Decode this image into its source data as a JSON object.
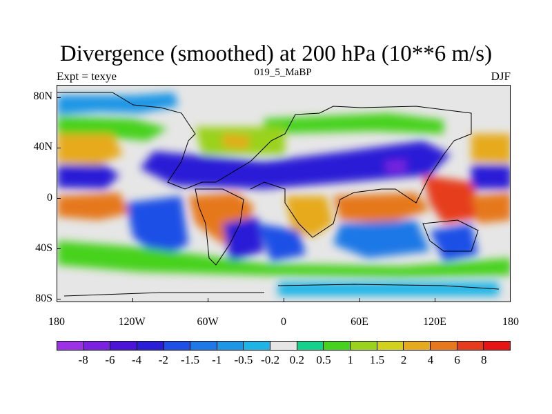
{
  "title": "Divergence (smoothed) at 200 hPa (10**6 m/s)",
  "left_string": "Expt = texye",
  "center_string": "019_5_MaBP",
  "right_string": "DJF",
  "map": {
    "projection": "cylindrical equidistant",
    "lon_range": [
      -180,
      180
    ],
    "lat_range": [
      -90,
      90
    ],
    "field": "200 hPa smoothed divergence",
    "ocean_land_background": "#e6e6e6",
    "coastline_color": "#000000"
  },
  "yaxis": {
    "ticks": [
      {
        "lat": 80,
        "label": "80N"
      },
      {
        "lat": 40,
        "label": "40N"
      },
      {
        "lat": 0,
        "label": "0"
      },
      {
        "lat": -40,
        "label": "40S"
      },
      {
        "lat": -80,
        "label": "80S"
      }
    ]
  },
  "xaxis": {
    "ticks": [
      {
        "lon": -180,
        "label": "180"
      },
      {
        "lon": -120,
        "label": "120W"
      },
      {
        "lon": -60,
        "label": "60W"
      },
      {
        "lon": 0,
        "label": "0"
      },
      {
        "lon": 60,
        "label": "60E"
      },
      {
        "lon": 120,
        "label": "120E"
      },
      {
        "lon": 180,
        "label": "180"
      }
    ]
  },
  "colorbar": {
    "colors": [
      "#9c31e6",
      "#7a22e0",
      "#4b14d6",
      "#2a1ed6",
      "#1e50e6",
      "#1e78e6",
      "#1e96e6",
      "#1eb4e6",
      "#e6e6e6",
      "#14d28c",
      "#46d21e",
      "#9ad21e",
      "#d2d21e",
      "#e6aa1e",
      "#e6781e",
      "#e63c1e",
      "#e61414"
    ],
    "labels": [
      "-8",
      "-6",
      "-4",
      "-2",
      "-1.5",
      "-1",
      "-0.5",
      "-0.2",
      "0.2",
      "0.5",
      "1",
      "1.5",
      "2",
      "4",
      "6",
      "8"
    ]
  }
}
